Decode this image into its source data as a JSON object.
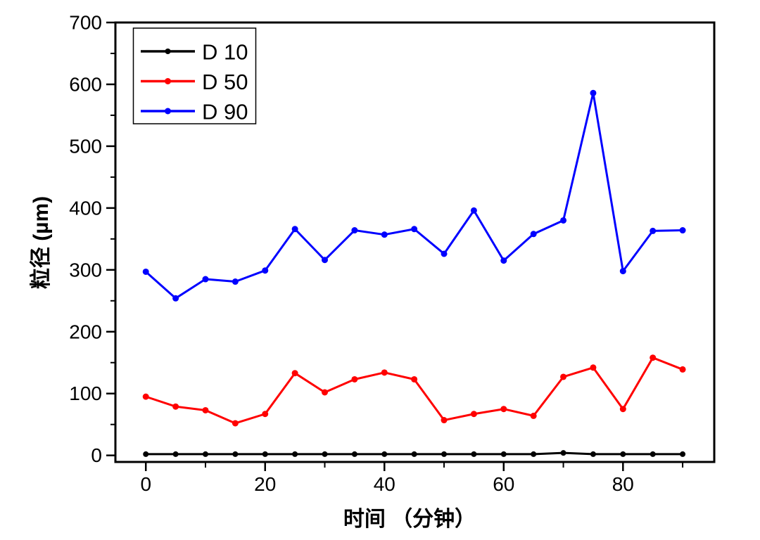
{
  "chart_data": {
    "type": "line",
    "title": "",
    "xlabel": "时间 （分钟）",
    "ylabel": "粒径 (µm)",
    "x": [
      0,
      5,
      10,
      15,
      20,
      25,
      30,
      35,
      40,
      45,
      50,
      55,
      60,
      65,
      70,
      75,
      80,
      85,
      90
    ],
    "series": [
      {
        "name": "D 10",
        "color": "#000000",
        "marker_radius": 4,
        "values": [
          2,
          2,
          2,
          2,
          2,
          2,
          2,
          2,
          2,
          2,
          2,
          2,
          2,
          2,
          4,
          2,
          2,
          2,
          2
        ]
      },
      {
        "name": "D 50",
        "color": "#ff0000",
        "marker_radius": 4.5,
        "values": [
          95,
          79,
          73,
          52,
          67,
          133,
          102,
          123,
          134,
          123,
          57,
          67,
          75,
          64,
          127,
          142,
          75,
          158,
          139
        ]
      },
      {
        "name": "D 90",
        "color": "#0000ff",
        "marker_radius": 4.5,
        "values": [
          297,
          254,
          285,
          281,
          299,
          366,
          316,
          364,
          357,
          366,
          326,
          396,
          315,
          358,
          380,
          586,
          298,
          363,
          364
        ]
      }
    ],
    "xlim": [
      -5.1,
      95.3
    ],
    "ylim": [
      -10.6,
      700
    ],
    "x_major_ticks": [
      0,
      20,
      40,
      60,
      80
    ],
    "x_minor_ticks": [
      10,
      30,
      50,
      70,
      90
    ],
    "y_major_ticks": [
      0,
      100,
      200,
      300,
      400,
      500,
      600,
      700
    ],
    "y_minor_ticks": [
      50,
      150,
      250,
      350,
      450,
      550,
      650
    ],
    "grid": false,
    "legend_position": "top-left",
    "axis_color": "#000000",
    "background_color": "#ffffff"
  }
}
